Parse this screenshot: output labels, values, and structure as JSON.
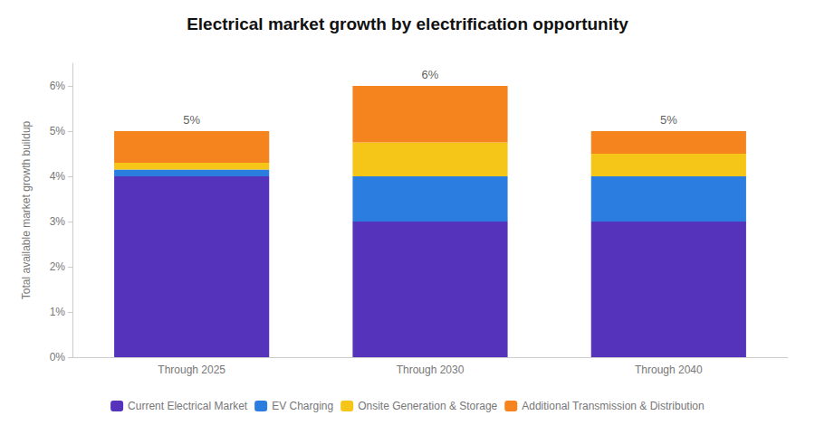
{
  "chart_data": {
    "type": "bar",
    "stacked": true,
    "title": "Electrical market growth by electrification opportunity",
    "ylabel": "Total available market growth buildup",
    "categories": [
      "Through 2025",
      "Through 2030",
      "Through 2040"
    ],
    "series": [
      {
        "name": "Current Electrical Market",
        "color": "#5533bb",
        "values": [
          4.0,
          3.0,
          3.0
        ]
      },
      {
        "name": "EV Charging",
        "color": "#2b7de0",
        "values": [
          0.15,
          1.0,
          1.0
        ]
      },
      {
        "name": "Onsite Generation & Storage",
        "color": "#f5c518",
        "values": [
          0.15,
          0.75,
          0.5
        ]
      },
      {
        "name": "Additional Transmission & Distribution",
        "color": "#f5841f",
        "values": [
          0.7,
          1.25,
          0.5
        ]
      }
    ],
    "annotations": [
      {
        "text": "5%",
        "x": "Through 2025",
        "y": 5.0
      },
      {
        "text": "6%",
        "x": "Through 2030",
        "y": 6.0
      },
      {
        "text": "5%",
        "x": "Through 2040",
        "y": 5.0
      }
    ],
    "ylim": [
      0,
      6.5
    ],
    "yticks": [
      {
        "value": 0,
        "label": "0%"
      },
      {
        "value": 1,
        "label": "1%"
      },
      {
        "value": 2,
        "label": "2%"
      },
      {
        "value": 3,
        "label": "3%"
      },
      {
        "value": 4,
        "label": "4%"
      },
      {
        "value": 5,
        "label": "5%"
      },
      {
        "value": 6,
        "label": "6%"
      }
    ],
    "grid": false,
    "legend": "bottom"
  }
}
